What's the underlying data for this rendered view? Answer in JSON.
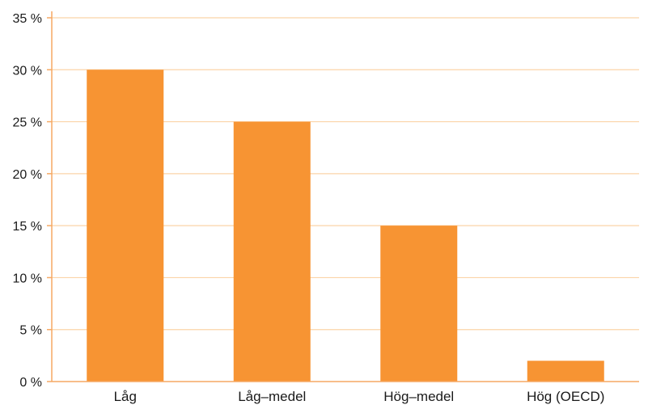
{
  "chart_data": {
    "type": "bar",
    "categories": [
      "Låg",
      "Låg–medel",
      "Hög–medel",
      "Hög (OECD)"
    ],
    "series": [
      {
        "values": [
          30,
          25,
          15,
          2
        ]
      }
    ],
    "title": "",
    "xlabel": "",
    "ylabel": "",
    "ylim": [
      0,
      35
    ],
    "yticks": [
      0,
      5,
      10,
      15,
      20,
      25,
      30,
      35
    ],
    "ytick_labels": [
      "0 %",
      "5 %",
      "10 %",
      "15 %",
      "20 %",
      "25 %",
      "30 %",
      "35 %"
    ],
    "grid": true,
    "legend": "none",
    "colors": {
      "bar": "#F79433",
      "grid": "#FBD4A8",
      "axis": "#F6A964"
    }
  }
}
